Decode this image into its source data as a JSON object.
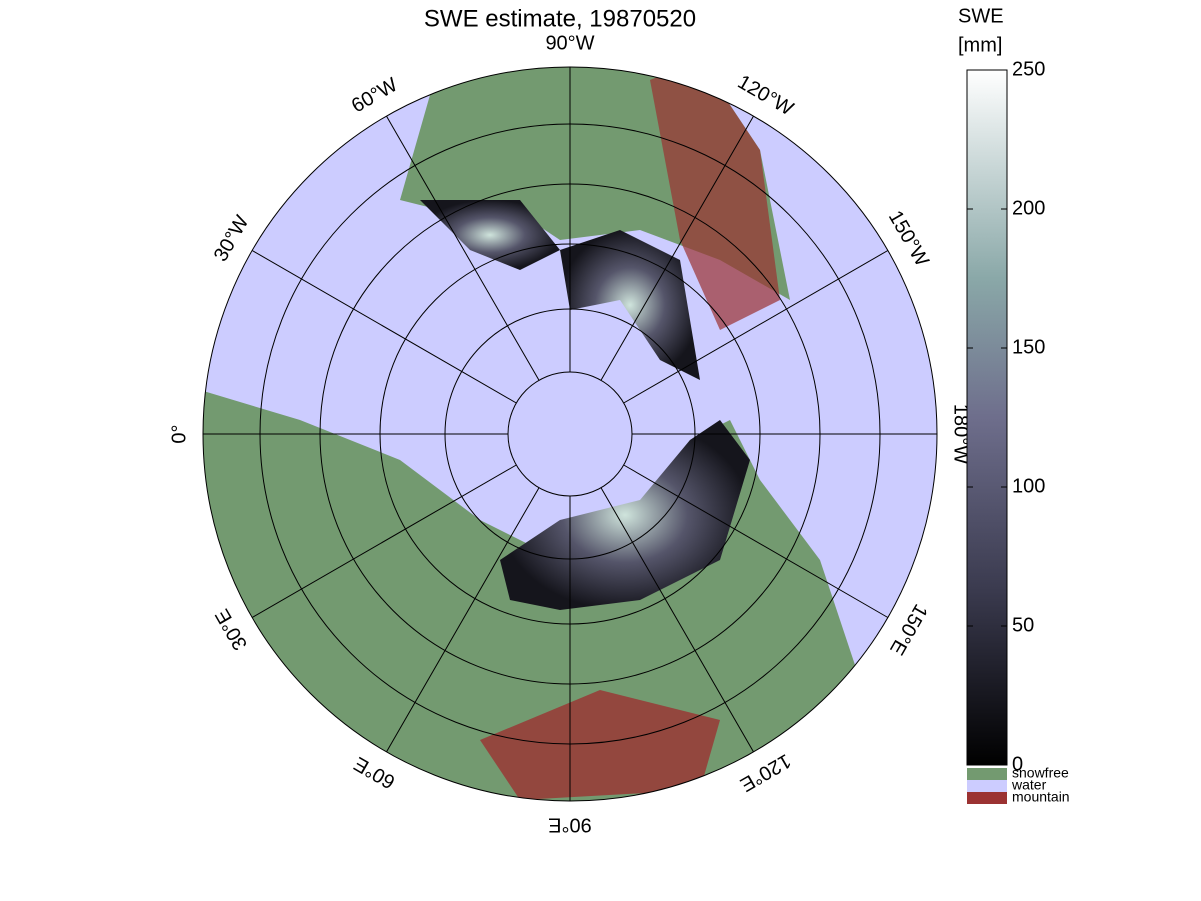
{
  "title": "SWE estimate, 19870520",
  "map": {
    "lon_labels": [
      {
        "lon": -90,
        "label": "90°W"
      },
      {
        "lon": -120,
        "label": "120°W"
      },
      {
        "lon": -150,
        "label": "150°W"
      },
      {
        "lon": 180,
        "label": "180°W"
      },
      {
        "lon": 150,
        "label": "150°E"
      },
      {
        "lon": 120,
        "label": "120°E"
      },
      {
        "lon": 90,
        "label": "90°E"
      },
      {
        "lon": 60,
        "label": "60°E"
      },
      {
        "lon": 30,
        "label": "30°E"
      },
      {
        "lon": 0,
        "label": "0°"
      },
      {
        "lon": -30,
        "label": "30°W"
      },
      {
        "lon": -60,
        "label": "60°W"
      }
    ]
  },
  "colorbar": {
    "title": [
      "SWE",
      "[mm]"
    ],
    "lim": [
      0,
      250
    ],
    "ticks": [
      0,
      50,
      100,
      150,
      200,
      250
    ],
    "categories": [
      {
        "name": "snowfree",
        "color": "#739a70"
      },
      {
        "name": "water",
        "color": "#ccccff"
      },
      {
        "name": "mountain",
        "color": "#9b3232"
      }
    ]
  }
}
